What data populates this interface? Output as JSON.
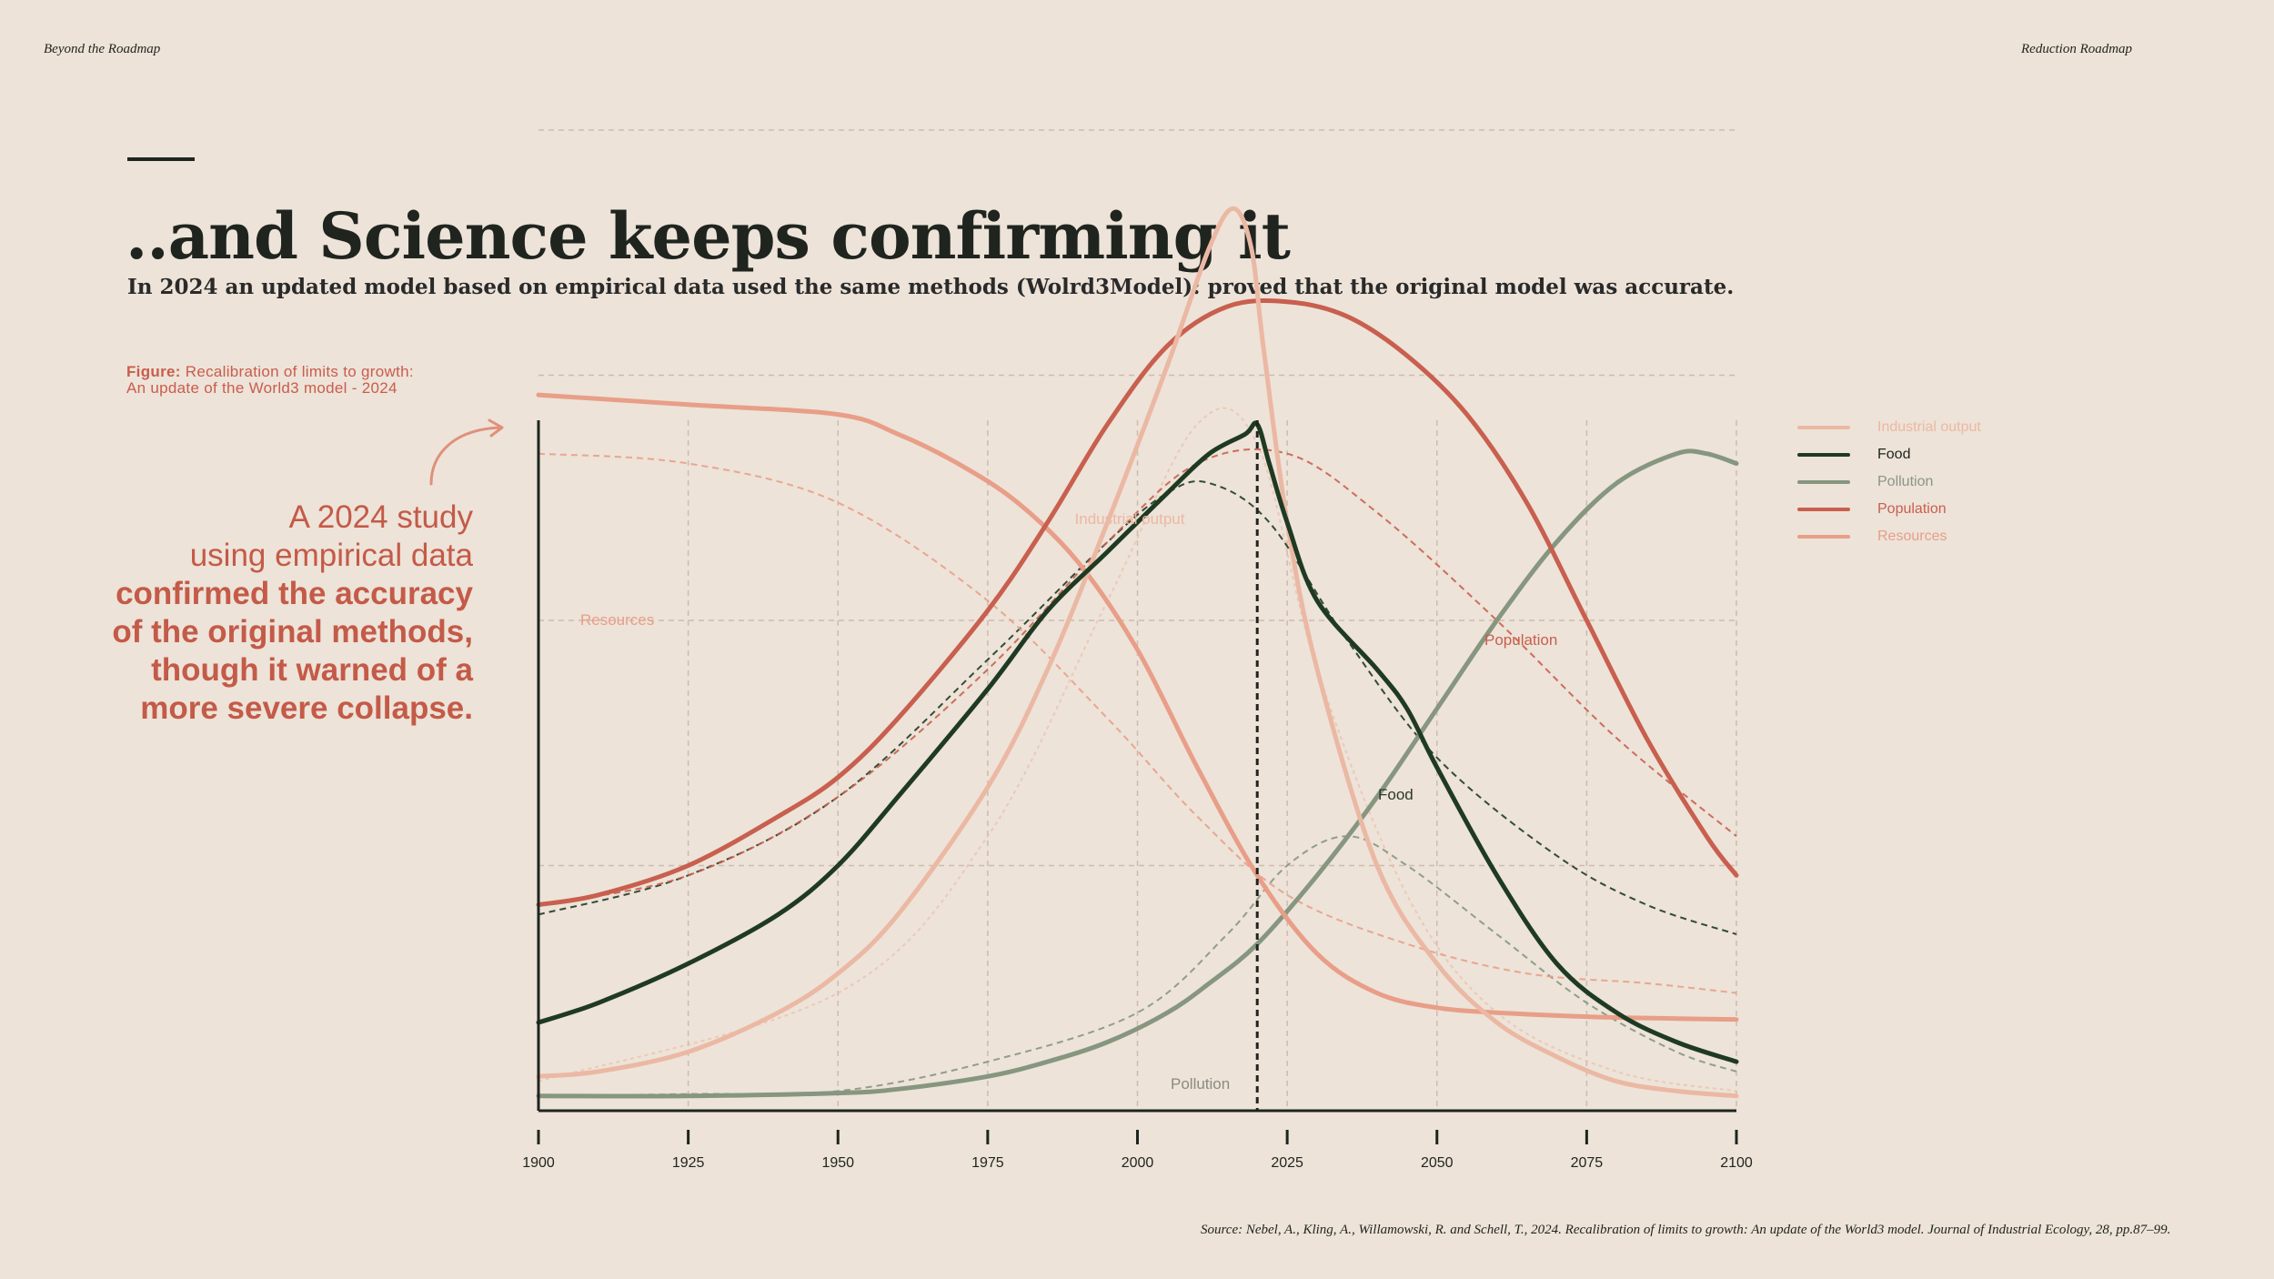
{
  "header": {
    "left": "Beyond the Roadmap",
    "right": "Reduction Roadmap"
  },
  "title": "..and Science keeps confirming it",
  "subtitle": "In 2024 an updated model based on empirical data used the same methods (Wolrd3Model): proved that the original model was accurate.",
  "figure_caption": {
    "label": "Figure:",
    "line1": "Recalibration of limits to growth:",
    "line2": "An update of the World3 model - 2024"
  },
  "callout": {
    "line1": "A 2024 study",
    "line2": "using empirical data",
    "line3": "confirmed the accuracy",
    "line4": "of the original methods,",
    "line5": "though it warned of a",
    "line6": "more severe collapse."
  },
  "source": "Source: Nebel, A., Kling, A., Willamowski, R. and Schell, T., 2024. Recalibration of limits to growth: An update of the World3 model. Journal of Industrial Ecology, 28, pp.87–99.",
  "colors": {
    "background": "#ede3d8",
    "industrial": "#ebb8a4",
    "food": "#1f3a22",
    "pollution": "#86967f",
    "population": "#c85f4f",
    "resources": "#e89e88",
    "text": "#1f241f",
    "accent": "#c45a48"
  },
  "chart_data": {
    "type": "line",
    "title": "",
    "xlabel": "",
    "ylabel": "",
    "xlim": [
      1900,
      2100
    ],
    "ylim": [
      0,
      1
    ],
    "x_ticks": [
      1900,
      1925,
      1950,
      1975,
      2000,
      2025,
      2050,
      2075,
      2100
    ],
    "grid": true,
    "reference_line_x": 2020,
    "legend_position": "top-right",
    "series": [
      {
        "name": "Industrial output",
        "key": "industrial",
        "label": "Industrial output",
        "x": [
          1900,
          1910,
          1925,
          1940,
          1950,
          1960,
          1975,
          1985,
          1995,
          2005,
          2012,
          2016,
          2019,
          2021,
          2025,
          2030,
          2040,
          2050,
          2060,
          2070,
          2080,
          2090,
          2100
        ],
        "values": [
          0.035,
          0.04,
          0.06,
          0.1,
          0.14,
          0.2,
          0.33,
          0.45,
          0.6,
          0.76,
          0.88,
          0.92,
          0.88,
          0.78,
          0.6,
          0.45,
          0.25,
          0.15,
          0.09,
          0.055,
          0.03,
          0.02,
          0.015
        ]
      },
      {
        "name": "Food",
        "key": "food",
        "label": "Food",
        "x": [
          1900,
          1910,
          1925,
          1940,
          1950,
          1960,
          1975,
          1985,
          1995,
          2005,
          2012,
          2018,
          2020,
          2022,
          2025,
          2030,
          2040,
          2045,
          2050,
          2060,
          2070,
          2080,
          2090,
          2100
        ],
        "values": [
          0.09,
          0.11,
          0.15,
          0.2,
          0.25,
          0.32,
          0.43,
          0.51,
          0.57,
          0.63,
          0.67,
          0.69,
          0.7,
          0.66,
          0.6,
          0.52,
          0.45,
          0.41,
          0.35,
          0.24,
          0.15,
          0.1,
          0.07,
          0.05
        ]
      },
      {
        "name": "Pollution",
        "key": "pollution",
        "label": "Pollution",
        "x": [
          1900,
          1925,
          1950,
          1960,
          1975,
          1985,
          1995,
          2005,
          2012,
          2020,
          2030,
          2040,
          2050,
          2060,
          2070,
          2080,
          2090,
          2095,
          2100
        ],
        "values": [
          0.015,
          0.015,
          0.018,
          0.022,
          0.035,
          0.05,
          0.07,
          0.1,
          0.13,
          0.17,
          0.24,
          0.32,
          0.41,
          0.5,
          0.58,
          0.64,
          0.67,
          0.67,
          0.66
        ]
      },
      {
        "name": "Population",
        "key": "population",
        "label": "Population",
        "x": [
          1900,
          1910,
          1925,
          1940,
          1950,
          1960,
          1975,
          1985,
          1995,
          2005,
          2015,
          2025,
          2035,
          2045,
          2055,
          2065,
          2075,
          2085,
          2095,
          2100
        ],
        "values": [
          0.21,
          0.22,
          0.25,
          0.3,
          0.34,
          0.4,
          0.51,
          0.6,
          0.7,
          0.78,
          0.82,
          0.825,
          0.81,
          0.77,
          0.71,
          0.62,
          0.5,
          0.38,
          0.28,
          0.24
        ]
      },
      {
        "name": "Resources",
        "key": "resources",
        "label": "Resources",
        "x": [
          1900,
          1925,
          1950,
          1960,
          1970,
          1980,
          1990,
          2000,
          2010,
          2020,
          2030,
          2040,
          2050,
          2060,
          2070,
          2080,
          2090,
          2100
        ],
        "values": [
          0.73,
          0.72,
          0.71,
          0.69,
          0.66,
          0.62,
          0.56,
          0.47,
          0.35,
          0.24,
          0.16,
          0.12,
          0.105,
          0.1,
          0.097,
          0.095,
          0.094,
          0.093
        ]
      }
    ],
    "original_model_dashed": [
      {
        "key": "industrial",
        "x": [
          1900,
          1950,
          1975,
          1995,
          2010,
          2020,
          2030,
          2045,
          2060,
          2080,
          2100
        ],
        "values": [
          0.03,
          0.12,
          0.28,
          0.52,
          0.7,
          0.68,
          0.45,
          0.22,
          0.1,
          0.04,
          0.02
        ]
      },
      {
        "key": "food",
        "x": [
          1900,
          1925,
          1950,
          1975,
          1995,
          2005,
          2012,
          2022,
          2035,
          2050,
          2070,
          2085,
          2100
        ],
        "values": [
          0.2,
          0.24,
          0.32,
          0.46,
          0.58,
          0.63,
          0.64,
          0.6,
          0.48,
          0.36,
          0.26,
          0.21,
          0.18
        ]
      },
      {
        "key": "pollution",
        "x": [
          1900,
          1925,
          1950,
          1975,
          2000,
          2015,
          2025,
          2035,
          2045,
          2060,
          2075,
          2090,
          2100
        ],
        "values": [
          0.015,
          0.017,
          0.02,
          0.05,
          0.1,
          0.18,
          0.25,
          0.28,
          0.25,
          0.18,
          0.11,
          0.06,
          0.04
        ]
      },
      {
        "key": "population",
        "x": [
          1900,
          1925,
          1950,
          1975,
          1995,
          2010,
          2025,
          2040,
          2060,
          2080,
          2100
        ],
        "values": [
          0.21,
          0.24,
          0.32,
          0.45,
          0.58,
          0.66,
          0.67,
          0.61,
          0.5,
          0.38,
          0.28
        ]
      },
      {
        "key": "resources",
        "x": [
          1900,
          1925,
          1950,
          1975,
          1995,
          2010,
          2025,
          2045,
          2065,
          2085,
          2100
        ],
        "values": [
          0.67,
          0.66,
          0.62,
          0.52,
          0.4,
          0.3,
          0.22,
          0.17,
          0.14,
          0.13,
          0.12
        ]
      }
    ]
  }
}
